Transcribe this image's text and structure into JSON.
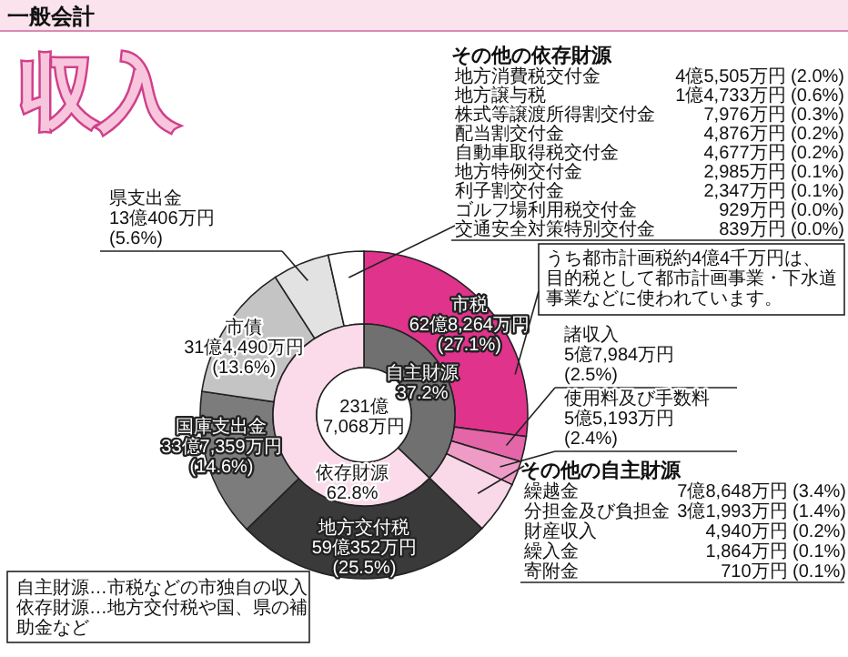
{
  "chart_data": [
    {
      "type": "donut",
      "title": "収入",
      "subtitle": "一般会計",
      "categories": [
        "市税",
        "諸収入",
        "使用料及び手数料",
        null,
        "地方交付税",
        "国庫支出金",
        "市債",
        "県支出金",
        null
      ],
      "values": [
        27.1,
        2.5,
        2.4,
        5.2,
        25.5,
        14.6,
        13.6,
        5.6,
        3.5
      ],
      "colors": [
        "#e0338c",
        "#e466a8",
        "#ee9cc6",
        "#f9d9e8",
        "#3a3a3a",
        "#7c7c7c",
        "#c4c4c4",
        "#e2e2e2",
        "#ffffff"
      ],
      "value_labels": [
        "62億8,264万円\n(27.1%)",
        "5億7,984万円\n(2.5%)",
        "5億5,193万円\n(2.4%)",
        null,
        "59億352万円\n(25.5%)",
        "33億7,359万円\n(14.6%)",
        "31億4,490万円\n(13.6%)",
        "13億406万円\n(5.6%)",
        null
      ],
      "annotations": [
        "うち都市計画税約4億4千万円は、目的税として都市計画事業・下水道事業などに使われています。"
      ]
    },
    {
      "type": "donut",
      "categories": [
        "自主財源",
        "依存財源"
      ],
      "values": [
        37.2,
        62.8
      ],
      "colors": [
        "#707070",
        "#fbdbe9"
      ],
      "value_labels": [
        "37.2%",
        "62.8%"
      ],
      "annotations": [
        "231億\n7,068万円"
      ]
    },
    {
      "type": "other",
      "title": "その他の依存財源",
      "annotations": [
        "地方消費税交付金",
        "4億5,505万円 (2.0%)",
        "地方譲与税",
        "1億4,733万円 (0.6%)",
        "株式等譲渡所得割交付金",
        "7,976万円 (0.3%)",
        "配当割交付金",
        "4,876万円 (0.2%)",
        "自動車取得税交付金",
        "4,677万円 (0.2%)",
        "地方特例交付金",
        "2,985万円 (0.1%)",
        "利子割交付金",
        "2,347万円 (0.1%)",
        "ゴルフ場利用税交付金",
        "929万円 (0.0%)",
        "交通安全対策特別交付金",
        "839万円 (0.0%)"
      ]
    },
    {
      "type": "other",
      "title": "その他の自主財源",
      "annotations": [
        "繰越金",
        "7億8,648万円 (3.4%)",
        "分担金及び負担金",
        "3億1,993万円 (1.4%)",
        "財産収入",
        "4,940万円 (0.2%)",
        "繰入金",
        "1,864万円 (0.1%)",
        "寄附金",
        "710万円 (0.1%)"
      ]
    },
    {
      "type": "other",
      "annotations": [
        "自主財源…市税などの市独自の収入",
        "依存財源…地方交付税や国、県の補助金など"
      ]
    }
  ]
}
